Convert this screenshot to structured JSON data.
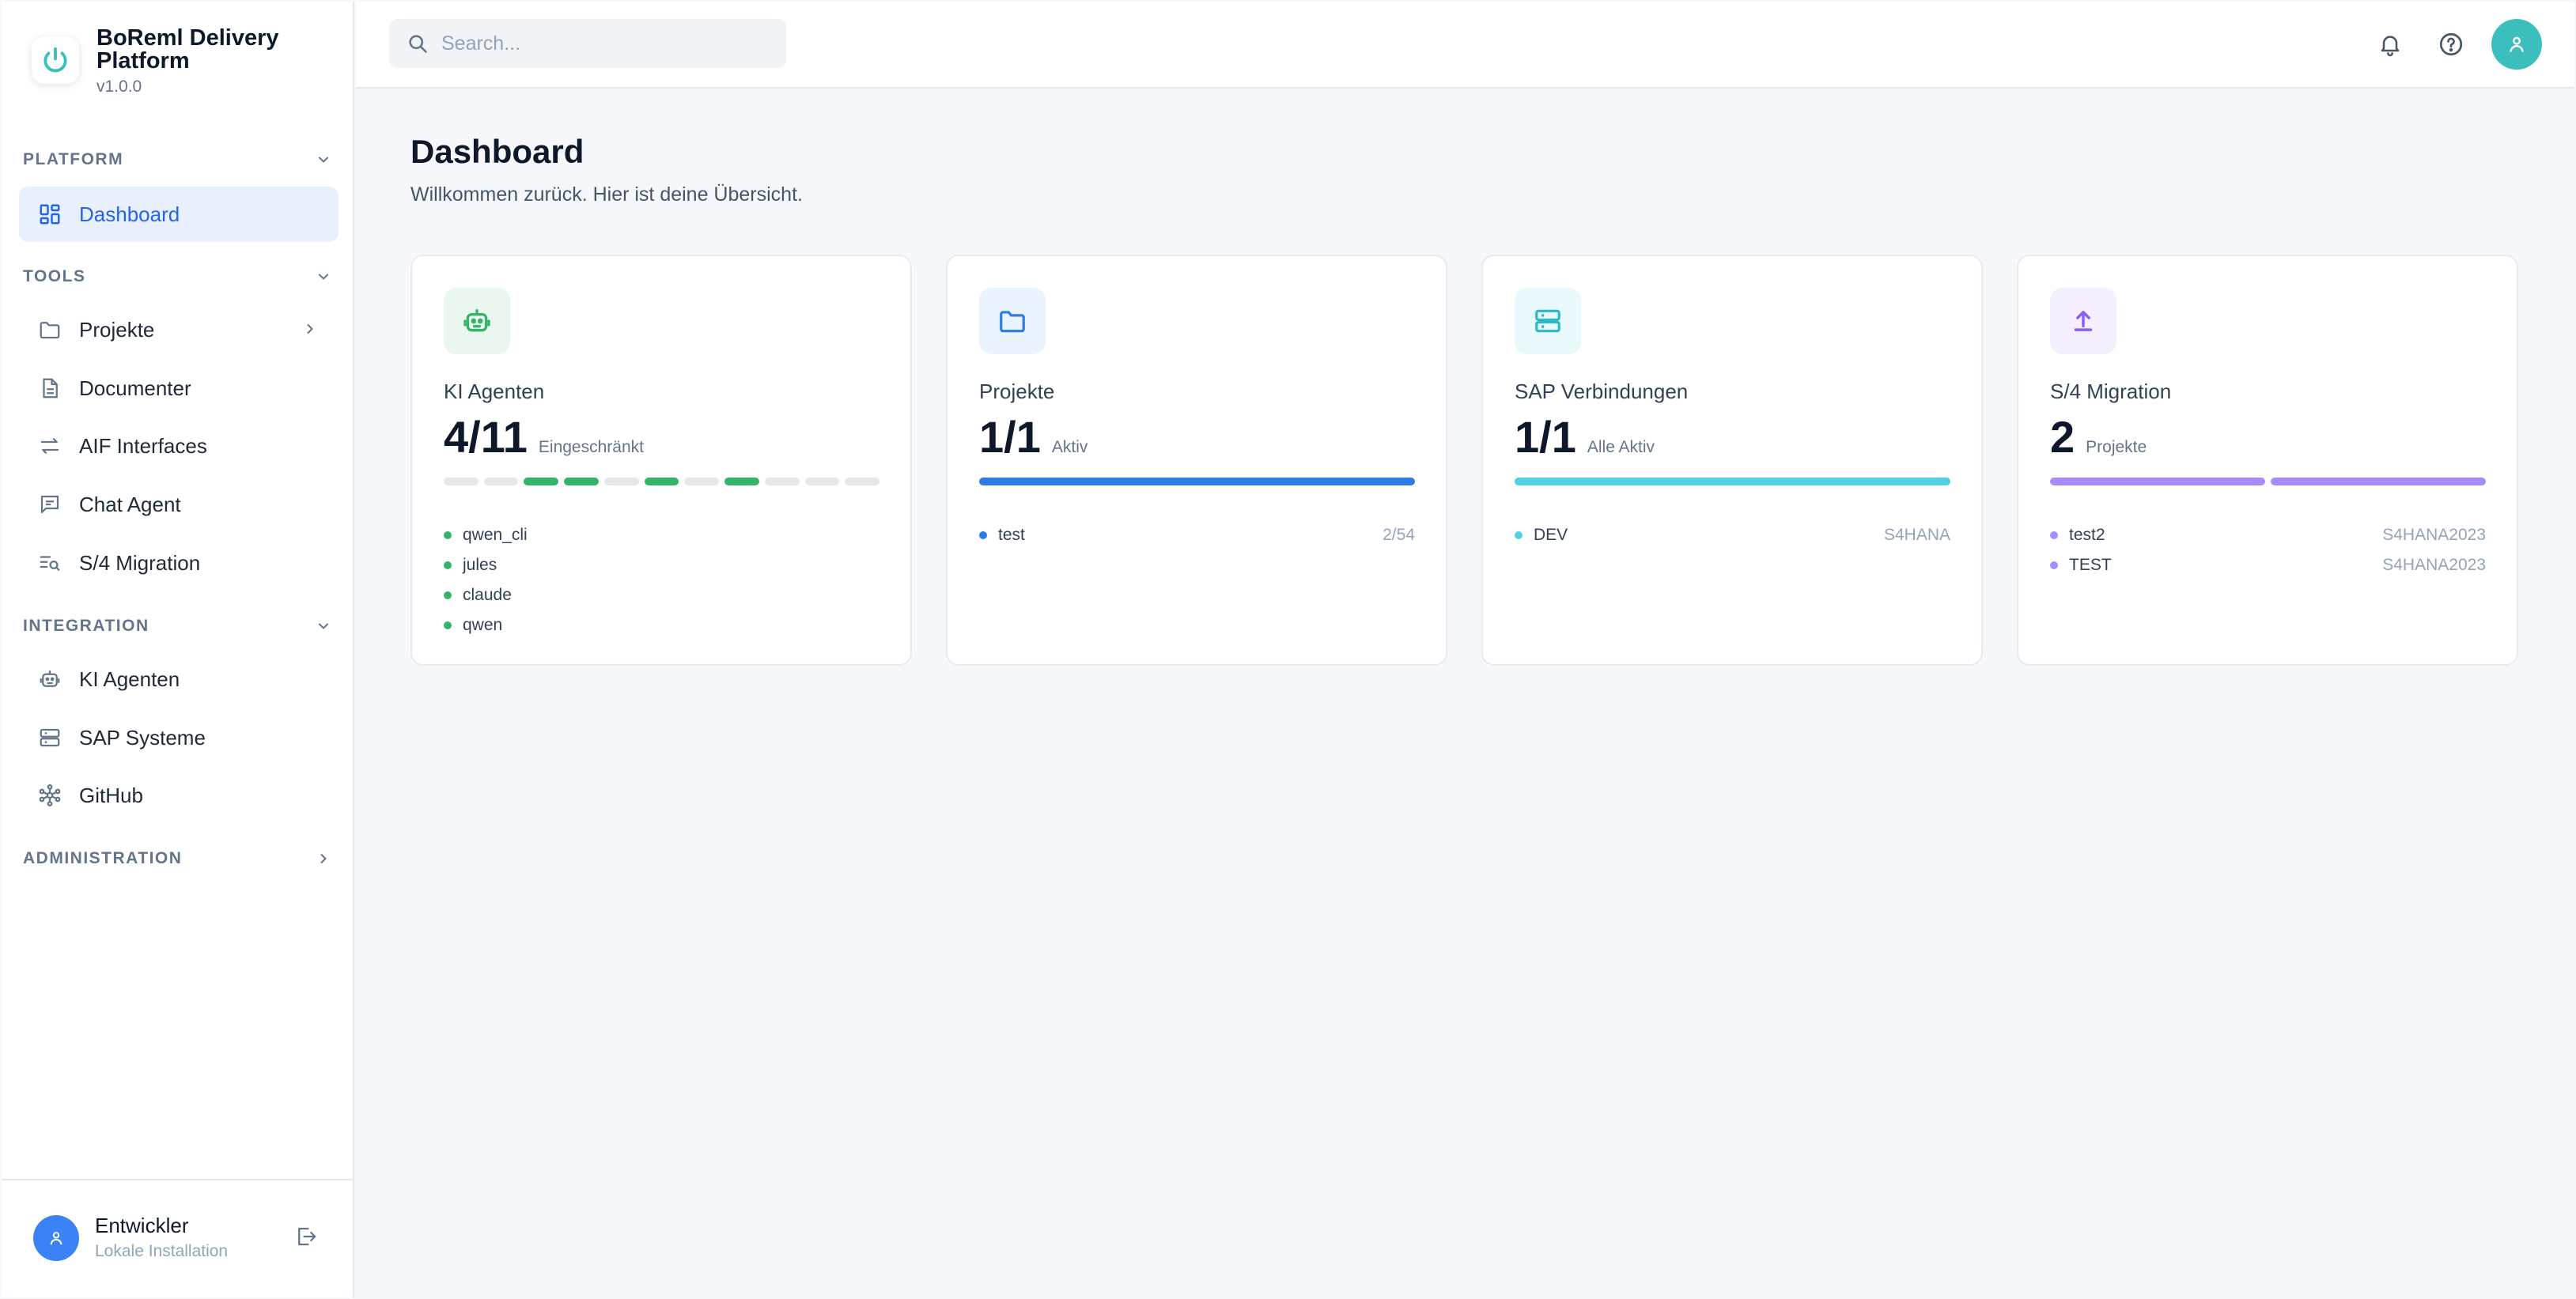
{
  "brand": {
    "name": "BoReml Delivery Platform",
    "version": "v1.0.0"
  },
  "sidebar": {
    "sections": {
      "platform": "PLATFORM",
      "tools": "TOOLS",
      "integration": "INTEGRATION",
      "administration": "ADMINISTRATION"
    },
    "items": {
      "dashboard": "Dashboard",
      "projekte": "Projekte",
      "documenter": "Documenter",
      "aif": "AIF Interfaces",
      "chat": "Chat Agent",
      "migration": "S/4 Migration",
      "ki": "KI Agenten",
      "sap": "SAP Systeme",
      "github": "GitHub"
    },
    "user": {
      "name": "Entwickler",
      "subtitle": "Lokale Installation"
    }
  },
  "search": {
    "placeholder": "Search..."
  },
  "page": {
    "title": "Dashboard",
    "subtitle": "Willkommen zurück. Hier ist deine Übersicht."
  },
  "cards": {
    "ki": {
      "label": "KI Agenten",
      "value": "4/11",
      "status": "Eingeschränkt",
      "accent": "#34b46b",
      "segments": [
        false,
        false,
        true,
        true,
        false,
        true,
        false,
        true,
        false,
        false,
        false
      ],
      "items": [
        {
          "name": "qwen_cli"
        },
        {
          "name": "jules"
        },
        {
          "name": "claude"
        },
        {
          "name": "qwen"
        }
      ]
    },
    "projekte": {
      "label": "Projekte",
      "value": "1/1",
      "status": "Aktiv",
      "accent": "#2f7be5",
      "progress": 1.0,
      "items": [
        {
          "name": "test",
          "right": "2/54"
        }
      ]
    },
    "sap": {
      "label": "SAP Verbindungen",
      "value": "1/1",
      "status": "Alle Aktiv",
      "accent": "#4fd0e3",
      "progress": 1.0,
      "items": [
        {
          "name": "DEV",
          "right": "S4HANA"
        }
      ]
    },
    "migration": {
      "label": "S/4 Migration",
      "value": "2",
      "status": "Projekte",
      "accent": "#a78bfa",
      "segments": [
        true,
        true
      ],
      "items": [
        {
          "name": "test2",
          "right": "S4HANA2023"
        },
        {
          "name": "TEST",
          "right": "S4HANA2023"
        }
      ]
    }
  }
}
